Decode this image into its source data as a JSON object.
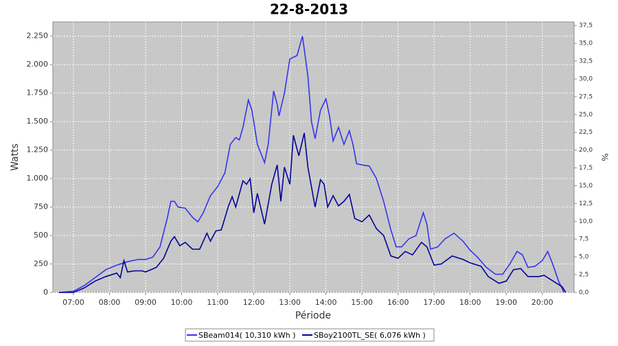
{
  "chart_data": {
    "type": "line",
    "title": "22-8-2013",
    "xlabel": "Période",
    "ylabel": "Watts",
    "y2label": "%",
    "xlim": [
      6.43,
      20.88
    ],
    "xticks": [
      {
        "value": 7,
        "label": "07:00"
      },
      {
        "value": 8,
        "label": "08:00"
      },
      {
        "value": 9,
        "label": "09:00"
      },
      {
        "value": 10,
        "label": "10:00"
      },
      {
        "value": 11,
        "label": "11:00"
      },
      {
        "value": 12,
        "label": "12:00"
      },
      {
        "value": 13,
        "label": "13:00"
      },
      {
        "value": 14,
        "label": "14:00"
      },
      {
        "value": 15,
        "label": "15:00"
      },
      {
        "value": 16,
        "label": "16:00"
      },
      {
        "value": 17,
        "label": "17:00"
      },
      {
        "value": 18,
        "label": "18:00"
      },
      {
        "value": 19,
        "label": "19:00"
      },
      {
        "value": 20,
        "label": "20:00"
      }
    ],
    "ylim": [
      0,
      2375
    ],
    "yticks": [
      0,
      250,
      500,
      750,
      {
        "value": 1000,
        "label": "1.000"
      },
      {
        "value": 1250,
        "label": "1.250"
      },
      {
        "value": 1500,
        "label": "1.500"
      },
      {
        "value": 1750,
        "label": "1.750"
      },
      {
        "value": 2000,
        "label": "2.000"
      },
      {
        "value": 2250,
        "label": "2.250"
      }
    ],
    "y2lim": [
      0,
      38
    ],
    "y2ticks": [
      {
        "value": 0,
        "label": "0,0"
      },
      {
        "value": 2.5,
        "label": "2,5"
      },
      {
        "value": 5,
        "label": "5,0"
      },
      {
        "value": 7.5,
        "label": "7,5"
      },
      {
        "value": 10,
        "label": "10,0"
      },
      {
        "value": 12.5,
        "label": "12,5"
      },
      {
        "value": 15,
        "label": "15,0"
      },
      {
        "value": 17.5,
        "label": "17,5"
      },
      {
        "value": 20,
        "label": "20,0"
      },
      {
        "value": 22.5,
        "label": "22,5"
      },
      {
        "value": 25,
        "label": "25,0"
      },
      {
        "value": 27.5,
        "label": "27,5"
      },
      {
        "value": 30,
        "label": "30,0"
      },
      {
        "value": 32.5,
        "label": "32,5"
      },
      {
        "value": 35,
        "label": "35,0"
      },
      {
        "value": 37.5,
        "label": "37,5"
      }
    ],
    "grid": true,
    "series": [
      {
        "name": "SBeam014( 10,310 kWh )",
        "color": "#3333ee",
        "x": [
          6.6,
          7.0,
          7.3,
          7.6,
          7.9,
          8.2,
          8.5,
          8.8,
          9.0,
          9.2,
          9.4,
          9.6,
          9.7,
          9.8,
          9.9,
          10.1,
          10.3,
          10.45,
          10.6,
          10.8,
          11.0,
          11.2,
          11.35,
          11.5,
          11.6,
          11.7,
          11.85,
          11.95,
          12.1,
          12.3,
          12.4,
          12.55,
          12.65,
          12.7,
          12.85,
          13.0,
          13.2,
          13.35,
          13.5,
          13.6,
          13.7,
          13.85,
          14.0,
          14.1,
          14.2,
          14.35,
          14.5,
          14.65,
          14.75,
          14.85,
          15.0,
          15.2,
          15.4,
          15.6,
          15.8,
          15.95,
          16.1,
          16.3,
          16.5,
          16.7,
          16.8,
          16.9,
          17.1,
          17.3,
          17.55,
          17.8,
          18.0,
          18.2,
          18.45,
          18.7,
          18.9,
          19.1,
          19.3,
          19.45,
          19.6,
          19.8,
          20.0,
          20.15,
          20.3,
          20.45,
          20.6
        ],
        "values": [
          0,
          10,
          60,
          130,
          200,
          240,
          270,
          290,
          290,
          310,
          400,
          650,
          800,
          800,
          750,
          740,
          660,
          620,
          700,
          850,
          930,
          1050,
          1300,
          1360,
          1340,
          1450,
          1690,
          1600,
          1300,
          1140,
          1300,
          1770,
          1650,
          1550,
          1750,
          2050,
          2080,
          2250,
          1900,
          1500,
          1350,
          1600,
          1700,
          1550,
          1330,
          1450,
          1300,
          1420,
          1300,
          1130,
          1120,
          1110,
          1000,
          800,
          550,
          400,
          400,
          470,
          500,
          700,
          600,
          380,
          400,
          470,
          520,
          450,
          370,
          310,
          220,
          160,
          160,
          250,
          360,
          330,
          220,
          230,
          280,
          360,
          240,
          100,
          0
        ]
      },
      {
        "name": "SBoy2100TL_SE( 6,076 kWh )",
        "color": "#000099",
        "x": [
          6.6,
          7.0,
          7.3,
          7.6,
          7.9,
          8.2,
          8.3,
          8.4,
          8.5,
          8.7,
          8.9,
          9.0,
          9.3,
          9.5,
          9.7,
          9.8,
          9.95,
          10.1,
          10.3,
          10.5,
          10.7,
          10.8,
          10.95,
          11.1,
          11.3,
          11.4,
          11.5,
          11.7,
          11.8,
          11.9,
          12.0,
          12.1,
          12.3,
          12.5,
          12.65,
          12.75,
          12.85,
          13.0,
          13.1,
          13.25,
          13.4,
          13.5,
          13.7,
          13.85,
          13.95,
          14.05,
          14.2,
          14.35,
          14.5,
          14.65,
          14.8,
          15.0,
          15.2,
          15.4,
          15.6,
          15.8,
          16.0,
          16.2,
          16.4,
          16.65,
          16.8,
          17.0,
          17.2,
          17.5,
          17.8,
          18.0,
          18.3,
          18.5,
          18.8,
          19.0,
          19.2,
          19.4,
          19.6,
          19.9,
          20.05,
          20.3,
          20.55,
          20.65
        ],
        "values": [
          0,
          0,
          40,
          100,
          140,
          170,
          130,
          280,
          180,
          190,
          190,
          180,
          220,
          300,
          450,
          490,
          410,
          440,
          380,
          380,
          520,
          450,
          540,
          550,
          760,
          840,
          750,
          980,
          950,
          1000,
          700,
          870,
          600,
          950,
          1120,
          800,
          1100,
          950,
          1380,
          1200,
          1400,
          1100,
          750,
          990,
          950,
          750,
          850,
          760,
          800,
          860,
          650,
          620,
          680,
          560,
          500,
          320,
          300,
          360,
          330,
          440,
          400,
          240,
          250,
          320,
          290,
          260,
          230,
          140,
          80,
          100,
          200,
          210,
          140,
          140,
          150,
          100,
          50,
          0
        ]
      }
    ]
  }
}
